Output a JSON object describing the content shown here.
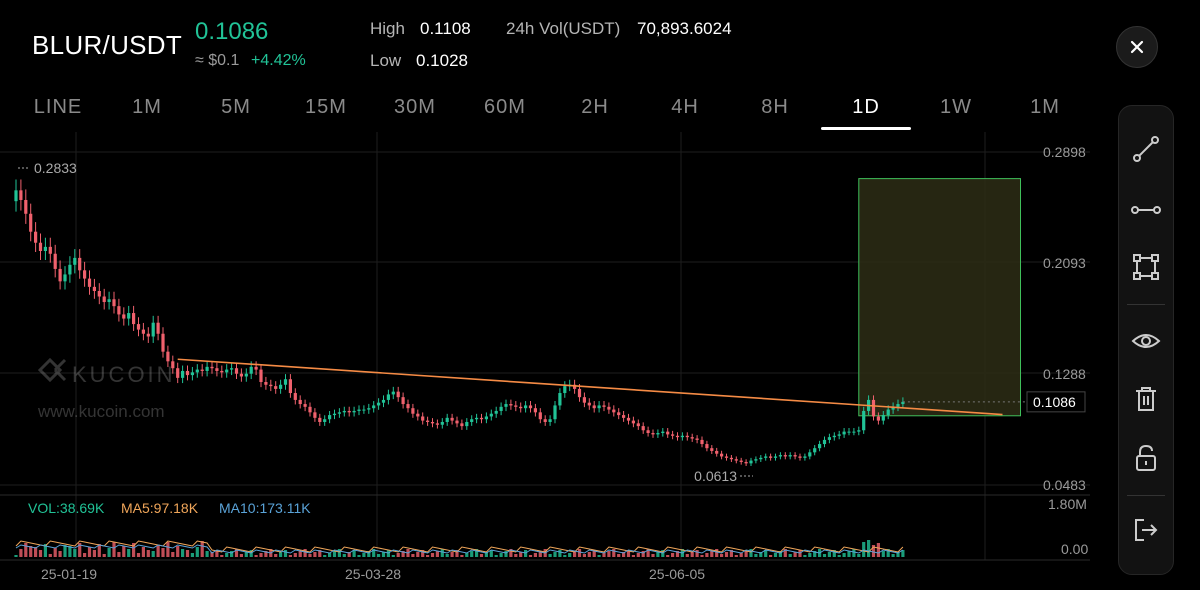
{
  "header": {
    "pair": "BLUR/USDT",
    "price": "0.1086",
    "approx": "≈ $0.1",
    "change": "+4.42%",
    "high_label": "High",
    "high_value": "0.1108",
    "low_label": "Low",
    "low_value": "0.1028",
    "vol_label": "24h Vol(USDT)",
    "vol_value": "70,893.6024"
  },
  "intervals": [
    "LINE",
    "1M",
    "5M",
    "15M",
    "30M",
    "60M",
    "2H",
    "4H",
    "8H",
    "1D",
    "1W",
    "1M"
  ],
  "active_interval": "1D",
  "toolbar": [
    "trendline-icon",
    "ray-line-icon",
    "rectangle-icon",
    "eye-icon",
    "trash-icon",
    "unlock-icon",
    "exit-icon"
  ],
  "watermark": {
    "logo": "KUCOIN",
    "url": "www.kucoin.com"
  },
  "volume_legend": {
    "vol": "VOL:38.69K",
    "ma5": "MA5:97.18K",
    "ma10": "MA10:173.11K"
  },
  "colors": {
    "up": "#21c397",
    "down": "#f0616d",
    "trendline": "#f58b45",
    "ma5": "#f0a65a",
    "ma10": "#5aa3d8",
    "box": "#3fbf5a"
  },
  "chart_data": {
    "type": "candlestick",
    "price_axis_ticks": [
      "0.2898",
      "0.2093",
      "0.1288",
      "0.0483"
    ],
    "volume_axis_ticks": [
      "1.80M",
      "0.00"
    ],
    "date_ticks": [
      "25-01-19",
      "25-03-28",
      "25-06-05"
    ],
    "ylim": [
      0.0483,
      0.2898
    ],
    "current_price_label": "0.1086",
    "high_annotation": "0.2833",
    "low_annotation": "0.0613",
    "close_series": [
      0.262,
      0.255,
      0.245,
      0.232,
      0.224,
      0.218,
      0.221,
      0.216,
      0.205,
      0.196,
      0.201,
      0.208,
      0.213,
      0.204,
      0.198,
      0.192,
      0.189,
      0.185,
      0.181,
      0.183,
      0.178,
      0.172,
      0.169,
      0.173,
      0.165,
      0.161,
      0.158,
      0.156,
      0.166,
      0.158,
      0.145,
      0.138,
      0.133,
      0.126,
      0.131,
      0.128,
      0.13,
      0.132,
      0.131,
      0.134,
      0.133,
      0.131,
      0.13,
      0.132,
      0.133,
      0.129,
      0.127,
      0.129,
      0.134,
      0.132,
      0.123,
      0.121,
      0.12,
      0.118,
      0.121,
      0.125,
      0.115,
      0.11,
      0.107,
      0.105,
      0.101,
      0.097,
      0.094,
      0.096,
      0.099,
      0.1,
      0.101,
      0.102,
      0.101,
      0.102,
      0.103,
      0.103,
      0.104,
      0.106,
      0.108,
      0.11,
      0.114,
      0.116,
      0.112,
      0.107,
      0.104,
      0.1,
      0.098,
      0.095,
      0.094,
      0.093,
      0.092,
      0.094,
      0.097,
      0.095,
      0.093,
      0.091,
      0.094,
      0.096,
      0.097,
      0.096,
      0.098,
      0.1,
      0.102,
      0.105,
      0.107,
      0.106,
      0.105,
      0.104,
      0.106,
      0.104,
      0.101,
      0.096,
      0.094,
      0.096,
      0.106,
      0.115,
      0.12,
      0.121,
      0.118,
      0.112,
      0.108,
      0.106,
      0.104,
      0.106,
      0.105,
      0.103,
      0.101,
      0.099,
      0.097,
      0.095,
      0.093,
      0.091,
      0.088,
      0.086,
      0.085,
      0.086,
      0.087,
      0.085,
      0.084,
      0.083,
      0.084,
      0.083,
      0.082,
      0.081,
      0.078,
      0.075,
      0.073,
      0.071,
      0.069,
      0.068,
      0.067,
      0.066,
      0.065,
      0.064,
      0.066,
      0.067,
      0.068,
      0.069,
      0.068,
      0.069,
      0.07,
      0.069,
      0.07,
      0.069,
      0.068,
      0.069,
      0.072,
      0.075,
      0.078,
      0.081,
      0.083,
      0.084,
      0.085,
      0.087,
      0.087,
      0.087,
      0.088,
      0.102,
      0.11,
      0.098,
      0.095,
      0.099,
      0.103,
      0.105,
      0.107,
      0.1086
    ],
    "trendline": {
      "start": {
        "index": 33,
        "price": 0.1395
      },
      "end": {
        "index": 185,
        "price": 0.1023
      }
    },
    "target_box": {
      "start_index": 172,
      "end_index": 205,
      "top_price": 0.2705,
      "bottom_price": 0.0985
    }
  }
}
